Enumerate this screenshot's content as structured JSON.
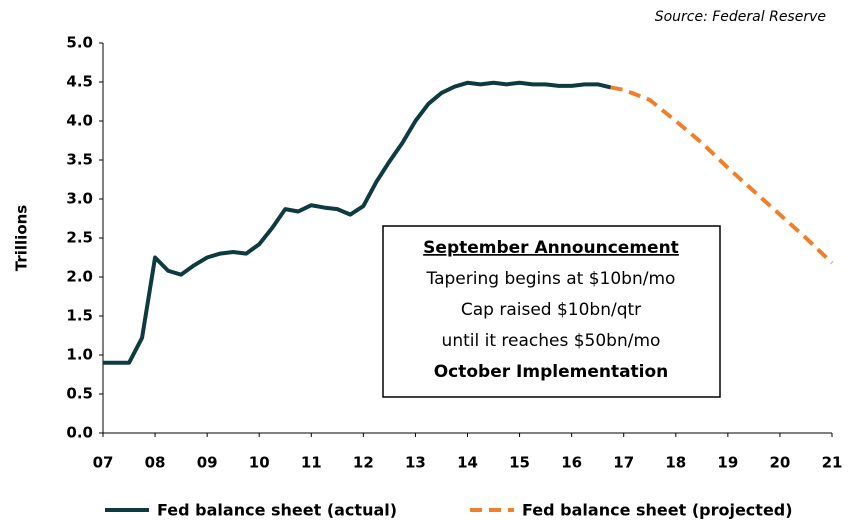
{
  "chart_data": {
    "type": "line",
    "source": "Source: Federal Reserve",
    "ylabel": "Trillions",
    "annotation": [
      "September Announcement",
      "Tapering begins at $10bn/mo",
      "Cap raised $10bn/qtr",
      "until it reaches $50bn/mo",
      "October Implementation"
    ],
    "series": [
      {
        "name": "Fed balance sheet (actual)",
        "color": "#0d3b40",
        "dashed": false,
        "x": [
          7,
          7.25,
          7.5,
          7.75,
          8,
          8.25,
          8.5,
          8.75,
          9,
          9.25,
          9.5,
          9.75,
          10,
          10.25,
          10.5,
          10.75,
          11,
          11.25,
          11.5,
          11.75,
          12,
          12.25,
          12.5,
          12.75,
          13,
          13.25,
          13.5,
          13.75,
          14,
          14.25,
          14.5,
          14.75,
          15,
          15.25,
          15.5,
          15.75,
          16,
          16.25,
          16.5,
          16.75
        ],
        "values": [
          0.9,
          0.9,
          0.9,
          1.22,
          2.25,
          2.08,
          2.03,
          2.15,
          2.25,
          2.3,
          2.32,
          2.3,
          2.42,
          2.63,
          2.87,
          2.84,
          2.92,
          2.89,
          2.87,
          2.8,
          2.91,
          3.22,
          3.48,
          3.72,
          4.0,
          4.22,
          4.36,
          4.44,
          4.49,
          4.47,
          4.49,
          4.47,
          4.49,
          4.47,
          4.47,
          4.45,
          4.45,
          4.47,
          4.47,
          4.43
        ]
      },
      {
        "name": "Fed balance sheet (projected)",
        "color": "#f07f2a",
        "dashed": true,
        "x": [
          16.75,
          17,
          17.5,
          18,
          18.5,
          19,
          19.5,
          20,
          20.5,
          21
        ],
        "values": [
          4.43,
          4.4,
          4.27,
          4.0,
          3.72,
          3.4,
          3.1,
          2.8,
          2.5,
          2.18
        ]
      }
    ],
    "xlim": [
      7,
      21
    ],
    "xticks": [
      {
        "value": 7,
        "label": "07"
      },
      {
        "value": 8,
        "label": "08"
      },
      {
        "value": 9,
        "label": "09"
      },
      10,
      11,
      12,
      13,
      14,
      15,
      16,
      17,
      18,
      19,
      20,
      21
    ],
    "ylim": [
      0,
      5
    ],
    "yticks": [
      {
        "value": 0,
        "label": "0.0"
      },
      0.5,
      {
        "value": 1,
        "label": "1.0"
      },
      1.5,
      {
        "value": 2,
        "label": "2.0"
      },
      2.5,
      {
        "value": 3,
        "label": "3.0"
      },
      3.5,
      {
        "value": 4,
        "label": "4.0"
      },
      4.5,
      {
        "value": 5,
        "label": "5.0"
      }
    ],
    "grid": false
  }
}
